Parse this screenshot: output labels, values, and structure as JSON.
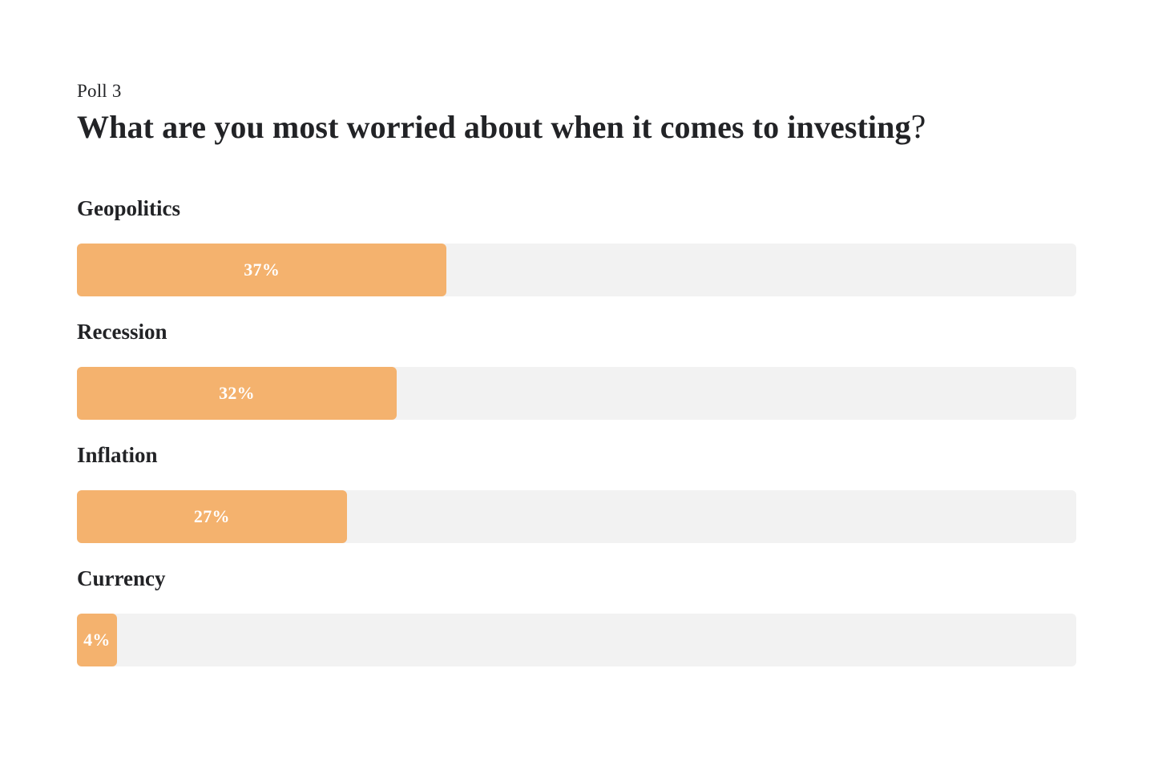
{
  "header": {
    "eyebrow": "Poll 3",
    "title": "What are you most worried about when it comes to investing",
    "title_suffix": "?"
  },
  "colors": {
    "bar_fill": "#F4B26E",
    "bar_track": "#F2F2F2",
    "text_dark": "#222326",
    "percent_text": "#FFFFFF",
    "page_bg": "#FFFFFF"
  },
  "chart_data": {
    "type": "bar",
    "orientation": "horizontal",
    "subtitle": "Poll 3",
    "title": "What are you most worried about when it comes to investing?",
    "categories": [
      "Geopolitics",
      "Recession",
      "Inflation",
      "Currency"
    ],
    "values": [
      37,
      32,
      27,
      4
    ],
    "value_labels": [
      "37%",
      "32%",
      "27%",
      "4%"
    ],
    "unit": "%",
    "xlim": [
      0,
      100
    ],
    "grid": false,
    "legend": false,
    "bar_color": "#F4B26E",
    "track_color": "#F2F2F2"
  }
}
